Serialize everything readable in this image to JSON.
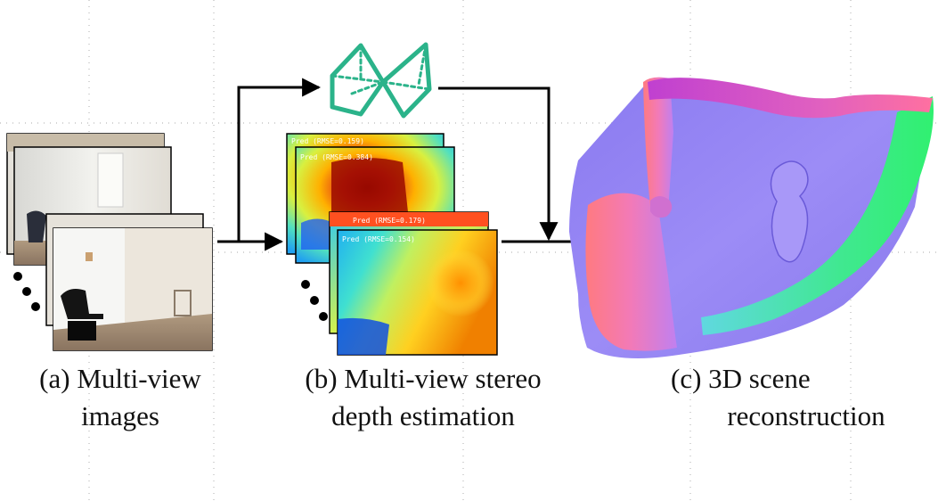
{
  "captions": {
    "a": {
      "line1": "(a) Multi-view",
      "line2": "images"
    },
    "b": {
      "line1": "(b) Multi-view stereo",
      "line2": "depth estimation"
    },
    "c": {
      "line1": "(c) 3D scene",
      "line2": "reconstruction"
    }
  },
  "depth_maps": [
    {
      "label": "Pred (RMSE=0.159)"
    },
    {
      "label": "Pred (RMSE=0.384)"
    },
    {
      "label": "Pred (RMSE=0.179)"
    },
    {
      "label": "Pred (RMSE=0.154)"
    }
  ],
  "colors": {
    "camera": "#2bb38a",
    "arrow": "#000000",
    "grid_dots": "#bbbbbb"
  },
  "icons": {
    "camera_pair": "stereo-camera-icon",
    "ellipsis": "vertical-ellipsis-icon"
  }
}
